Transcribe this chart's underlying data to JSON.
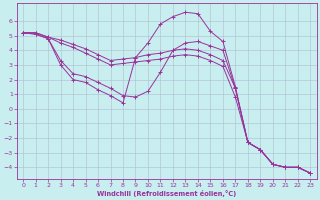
{
  "xlabel": "Windchill (Refroidissement éolien,°C)",
  "xlim": [
    -0.5,
    23.5
  ],
  "ylim": [
    -4.8,
    7.2
  ],
  "yticks": [
    -4,
    -3,
    -2,
    -1,
    0,
    1,
    2,
    3,
    4,
    5,
    6
  ],
  "xticks": [
    0,
    1,
    2,
    3,
    4,
    5,
    6,
    7,
    8,
    9,
    10,
    11,
    12,
    13,
    14,
    15,
    16,
    17,
    18,
    19,
    20,
    21,
    22,
    23
  ],
  "background_color": "#c8eef0",
  "line_color": "#993399",
  "grid_color": "#b0bbd0",
  "lines": [
    [
      0,
      5.2,
      1,
      5.2,
      2,
      4.9,
      3,
      4.7,
      4,
      4.4,
      5,
      4.1,
      6,
      3.7,
      7,
      3.3,
      8,
      3.4,
      9,
      3.5,
      10,
      3.7,
      11,
      3.8,
      12,
      4.0,
      13,
      4.1,
      14,
      4.0,
      15,
      3.7,
      16,
      3.3,
      17,
      1.4,
      18,
      -2.3,
      19,
      -2.8,
      20,
      -3.8,
      21,
      -4.0,
      22,
      -4.0,
      23,
      -4.4
    ],
    [
      0,
      5.2,
      1,
      5.2,
      2,
      4.9,
      3,
      4.5,
      4,
      4.2,
      5,
      3.8,
      6,
      3.4,
      7,
      3.0,
      8,
      3.1,
      9,
      3.2,
      10,
      3.3,
      11,
      3.4,
      12,
      3.6,
      13,
      3.7,
      14,
      3.6,
      15,
      3.3,
      16,
      2.9,
      17,
      0.8,
      18,
      -2.3,
      19,
      -2.8,
      20,
      -3.8,
      21,
      -4.0,
      22,
      -4.0,
      23,
      -4.4
    ],
    [
      0,
      5.2,
      1,
      5.1,
      2,
      4.8,
      3,
      3.3,
      4,
      2.4,
      5,
      2.2,
      6,
      1.8,
      7,
      1.4,
      8,
      0.9,
      9,
      0.8,
      10,
      1.2,
      11,
      2.5,
      12,
      4.0,
      13,
      4.5,
      14,
      4.6,
      15,
      4.3,
      16,
      4.0,
      17,
      1.4,
      18,
      -2.3,
      19,
      -2.8,
      20,
      -3.8,
      21,
      -4.0,
      22,
      -4.0,
      23,
      -4.4
    ],
    [
      0,
      5.2,
      1,
      5.1,
      2,
      4.8,
      3,
      3.0,
      4,
      2.0,
      5,
      1.8,
      6,
      1.3,
      7,
      0.9,
      8,
      0.4,
      9,
      3.5,
      10,
      4.5,
      11,
      5.8,
      12,
      6.3,
      13,
      6.6,
      14,
      6.5,
      15,
      5.3,
      16,
      4.6,
      17,
      1.5,
      18,
      -2.3,
      19,
      -2.8,
      20,
      -3.8,
      21,
      -4.0,
      22,
      -4.0,
      23,
      -4.4
    ]
  ]
}
